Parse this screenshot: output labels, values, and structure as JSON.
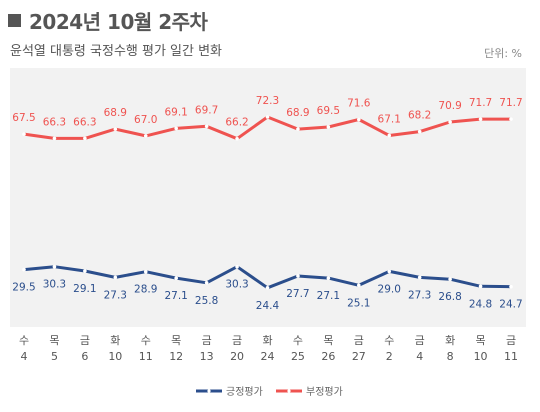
{
  "header": {
    "title": "2024년 10월 2주차",
    "subtitle": "윤석열 대통령 국정수행 평가 일간 변화",
    "unit": "단위: %"
  },
  "colors": {
    "positive": "#2b4e8c",
    "negative": "#ef5350",
    "plot_bg": "#f2f2f2"
  },
  "chart_data": {
    "type": "line",
    "categories": [
      {
        "weekday": "수",
        "day": "4"
      },
      {
        "weekday": "목",
        "day": "5"
      },
      {
        "weekday": "금",
        "day": "6"
      },
      {
        "weekday": "화",
        "day": "10"
      },
      {
        "weekday": "수",
        "day": "11"
      },
      {
        "weekday": "목",
        "day": "12"
      },
      {
        "weekday": "금",
        "day": "13"
      },
      {
        "weekday": "금",
        "day": "20"
      },
      {
        "weekday": "화",
        "day": "24"
      },
      {
        "weekday": "수",
        "day": "25"
      },
      {
        "weekday": "목",
        "day": "26"
      },
      {
        "weekday": "금",
        "day": "27"
      },
      {
        "weekday": "수",
        "day": "2"
      },
      {
        "weekday": "금",
        "day": "4"
      },
      {
        "weekday": "화",
        "day": "8"
      },
      {
        "weekday": "목",
        "day": "10"
      },
      {
        "weekday": "금",
        "day": "11"
      }
    ],
    "series": [
      {
        "name": "긍정평가",
        "values": [
          29.5,
          30.3,
          29.1,
          27.3,
          28.9,
          27.1,
          25.8,
          30.3,
          24.4,
          27.7,
          27.1,
          25.1,
          29.0,
          27.3,
          26.8,
          24.8,
          24.7
        ]
      },
      {
        "name": "부정평가",
        "values": [
          67.5,
          66.3,
          66.3,
          68.9,
          67.0,
          69.1,
          69.7,
          66.2,
          72.3,
          68.9,
          69.5,
          71.6,
          67.1,
          68.2,
          70.9,
          71.7,
          71.7
        ]
      }
    ],
    "legend_position": "bottom-center",
    "grid": false
  }
}
